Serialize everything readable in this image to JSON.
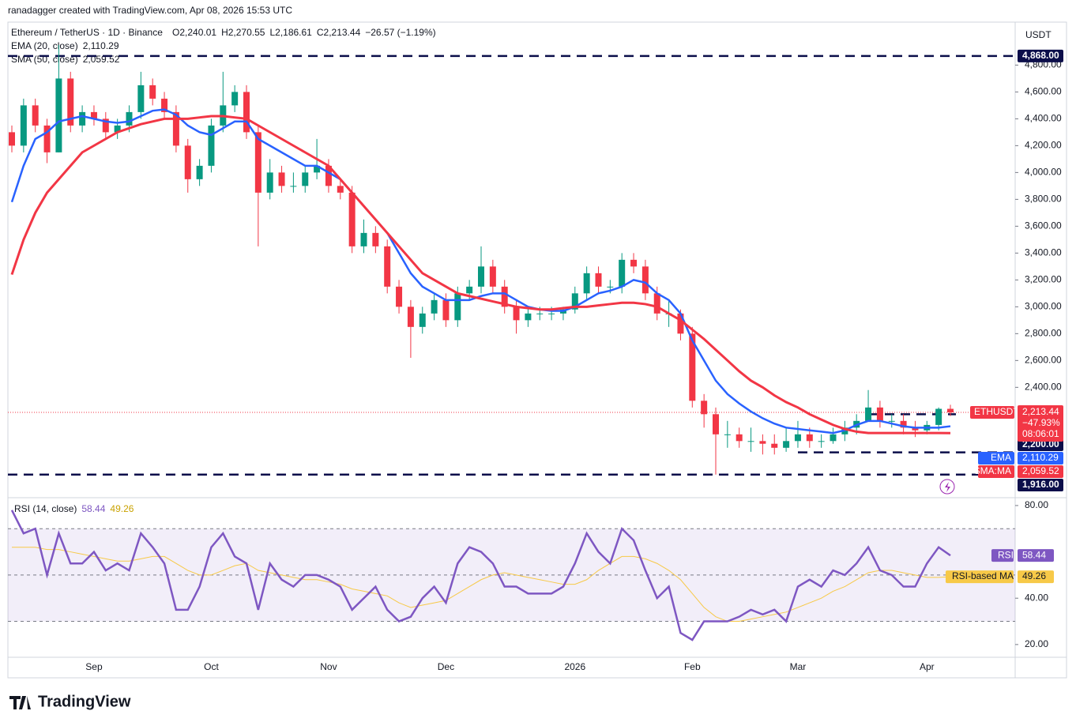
{
  "header": {
    "credit": "ranadagger created with TradingView.com, Apr 08, 2026 15:53 UTC",
    "logo": "TradingView"
  },
  "chart_data": [
    {
      "type": "candlestick",
      "title": "Ethereum / TetherUS · 1D · Binance",
      "unit": "USDT",
      "ohlc_legend": [
        "O",
        "2,240.01",
        "H",
        "2,270.55",
        "L",
        "2,186.61",
        "C",
        "2,213.44",
        "−26.57 (−1.19%)"
      ],
      "up_color": "#089981",
      "down_color": "#f23645",
      "categories": [
        null,
        null,
        null,
        null,
        null,
        null,
        null,
        "Sep",
        null,
        null,
        null,
        null,
        null,
        null,
        null,
        null,
        null,
        "Oct",
        null,
        null,
        null,
        null,
        null,
        null,
        null,
        null,
        null,
        "Nov",
        null,
        null,
        null,
        null,
        null,
        null,
        null,
        null,
        null,
        "Dec",
        null,
        null,
        null,
        null,
        null,
        null,
        null,
        null,
        null,
        null,
        "2026",
        null,
        null,
        null,
        null,
        null,
        null,
        null,
        null,
        null,
        "Feb",
        null,
        null,
        null,
        null,
        null,
        null,
        null,
        null,
        "Mar",
        null,
        null,
        null,
        null,
        null,
        null,
        null,
        null,
        null,
        null,
        "Apr",
        null,
        null
      ],
      "open": [
        4300,
        4200,
        4500,
        4350,
        4150,
        4700,
        4350,
        4450,
        4400,
        4300,
        4350,
        4450,
        4650,
        4550,
        4450,
        4200,
        3950,
        4050,
        4350,
        4500,
        4600,
        4300,
        3850,
        4000,
        3900,
        3900,
        4000,
        4050,
        3900,
        3850,
        3450,
        3550,
        3450,
        3150,
        3000,
        2850,
        2950,
        3050,
        2900,
        3100,
        3150,
        3300,
        3150,
        3000,
        2900,
        2950,
        2950,
        2950,
        2980,
        3100,
        3250,
        3150,
        3150,
        3350,
        3300,
        3100,
        2950,
        2950,
        2800,
        2300,
        2200,
        2050,
        2050,
        2000,
        2000,
        1980,
        1950,
        2000,
        2050,
        2000,
        2000,
        2050,
        2100,
        2150,
        2250,
        2150,
        2150,
        2100,
        2080,
        2120,
        2240.01
      ],
      "high": [
        4350,
        4550,
        4550,
        4400,
        4950,
        4750,
        4500,
        4500,
        4450,
        4400,
        4500,
        4750,
        4700,
        4600,
        4500,
        4250,
        4100,
        4400,
        4750,
        4650,
        4650,
        4350,
        4100,
        4050,
        4000,
        4050,
        4250,
        4100,
        3950,
        3900,
        3650,
        3600,
        3500,
        3200,
        3050,
        3000,
        3100,
        3100,
        3150,
        3200,
        3450,
        3350,
        3200,
        3050,
        3000,
        3000,
        3000,
        3000,
        3150,
        3300,
        3300,
        3200,
        3400,
        3400,
        3350,
        3150,
        3050,
        2980,
        2850,
        2350,
        2250,
        2150,
        2100,
        2100,
        2050,
        2050,
        2100,
        2150,
        2100,
        2050,
        2100,
        2150,
        2200,
        2380,
        2300,
        2200,
        2200,
        2150,
        2150,
        2250,
        2270.55
      ],
      "low": [
        4150,
        4150,
        4300,
        4070,
        4150,
        4300,
        4300,
        4350,
        4250,
        4250,
        4300,
        4400,
        4500,
        4400,
        4150,
        3850,
        3900,
        4000,
        4300,
        4450,
        4250,
        3450,
        3800,
        3850,
        3850,
        3850,
        3950,
        3850,
        3800,
        3400,
        3400,
        3400,
        3100,
        2950,
        2620,
        2800,
        2900,
        2850,
        2850,
        3050,
        3100,
        3100,
        2950,
        2800,
        2850,
        2900,
        2900,
        2900,
        2950,
        3050,
        3100,
        3100,
        3100,
        3250,
        3050,
        2900,
        2850,
        2750,
        2250,
        2100,
        1750,
        1950,
        1950,
        1920,
        1900,
        1900,
        1920,
        1950,
        1950,
        1950,
        1980,
        2000,
        2050,
        2150,
        2100,
        2100,
        2050,
        2030,
        2050,
        2080,
        2186.61
      ],
      "close": [
        4200,
        4500,
        4350,
        4150,
        4700,
        4350,
        4450,
        4400,
        4300,
        4350,
        4450,
        4650,
        4550,
        4450,
        4200,
        3950,
        4050,
        4350,
        4500,
        4600,
        4300,
        3850,
        4000,
        3900,
        3900,
        4000,
        4050,
        3900,
        3850,
        3450,
        3550,
        3450,
        3150,
        3000,
        2850,
        2950,
        3050,
        2900,
        3100,
        3150,
        3300,
        3150,
        3000,
        2900,
        2950,
        2950,
        2950,
        2980,
        3100,
        3250,
        3150,
        3150,
        3350,
        3300,
        3100,
        2950,
        2950,
        2800,
        2300,
        2200,
        2050,
        2050,
        2000,
        2000,
        1980,
        1950,
        2000,
        2050,
        2000,
        2000,
        2050,
        2100,
        2150,
        2250,
        2150,
        2150,
        2100,
        2080,
        2120,
        2240.01,
        2213.44
      ],
      "series": [
        {
          "name": "EMA (20, close)",
          "last_label": "2,110.29",
          "color": "#2962ff",
          "values": [
            3780,
            4050,
            4250,
            4300,
            4380,
            4400,
            4420,
            4400,
            4380,
            4370,
            4380,
            4420,
            4460,
            4470,
            4430,
            4350,
            4300,
            4280,
            4330,
            4380,
            4380,
            4250,
            4200,
            4150,
            4100,
            4050,
            4050,
            4000,
            3950,
            3850,
            3750,
            3650,
            3550,
            3400,
            3250,
            3150,
            3100,
            3050,
            3050,
            3050,
            3080,
            3100,
            3100,
            3050,
            3000,
            2980,
            2970,
            2970,
            3000,
            3050,
            3100,
            3120,
            3150,
            3200,
            3180,
            3100,
            3050,
            2950,
            2750,
            2600,
            2450,
            2350,
            2280,
            2220,
            2170,
            2130,
            2100,
            2090,
            2080,
            2070,
            2060,
            2080,
            2120,
            2150,
            2150,
            2130,
            2110,
            2100,
            2100,
            2100,
            2110.29
          ]
        },
        {
          "name": "SMA (50, close)",
          "last_label": "2,059.52",
          "color": "#f23645",
          "values": [
            3240,
            3500,
            3700,
            3850,
            3950,
            4050,
            4150,
            4200,
            4250,
            4300,
            4330,
            4360,
            4380,
            4400,
            4400,
            4400,
            4410,
            4420,
            4420,
            4410,
            4400,
            4350,
            4300,
            4250,
            4200,
            4150,
            4100,
            4050,
            3950,
            3850,
            3750,
            3650,
            3550,
            3450,
            3350,
            3250,
            3200,
            3150,
            3100,
            3080,
            3060,
            3040,
            3020,
            3000,
            2990,
            2980,
            2980,
            2990,
            3000,
            3000,
            3010,
            3020,
            3030,
            3030,
            3020,
            3000,
            2950,
            2900,
            2830,
            2760,
            2680,
            2600,
            2520,
            2450,
            2400,
            2340,
            2290,
            2250,
            2200,
            2160,
            2120,
            2090,
            2070,
            2060,
            2060,
            2060,
            2060,
            2060,
            2060,
            2060,
            2059.52
          ]
        }
      ],
      "ylim": [
        1590,
        5120
      ],
      "yticks": [
        {
          "value": 4800,
          "label": "4,800.00"
        },
        {
          "value": 4600,
          "label": "4,600.00"
        },
        {
          "value": 4400,
          "label": "4,400.00"
        },
        {
          "value": 4200,
          "label": "4,200.00"
        },
        {
          "value": 4000,
          "label": "4,000.00"
        },
        {
          "value": 3800,
          "label": "3,800.00"
        },
        {
          "value": 3600,
          "label": "3,600.00"
        },
        {
          "value": 3400,
          "label": "3,400.00"
        },
        {
          "value": 3200,
          "label": "3,200.00"
        },
        {
          "value": 3000,
          "label": "3,000.00"
        },
        {
          "value": 2800,
          "label": "2,800.00"
        },
        {
          "value": 2600,
          "label": "2,600.00"
        },
        {
          "value": 2400,
          "label": "2,400.00"
        }
      ],
      "levels": [
        {
          "value": 4868,
          "label": "4,868.00"
        },
        {
          "value": 2200,
          "label": "2,200.00"
        },
        {
          "value": 1916,
          "label": "1,916.00"
        },
        {
          "value": 1750
        }
      ],
      "price_tag": {
        "value": 2213.44,
        "name": "ETHUSDT",
        "label": "2,213.44",
        "change": "−47.93%",
        "countdown": "08:06:01"
      },
      "ma_tags": [
        {
          "name": "EMA",
          "label": "2,110.29",
          "color": "#2962ff"
        },
        {
          "name": "SMA:MA",
          "label": "2,059.52",
          "color": "#f23645"
        }
      ]
    },
    {
      "type": "line",
      "title": "RSI (14, close)",
      "band_color": "#7e57c2",
      "series": [
        {
          "name": "RSI",
          "last_label": "58.44",
          "color": "#7e57c2",
          "values": [
            78,
            68,
            70,
            50,
            68,
            55,
            55,
            60,
            52,
            55,
            52,
            68,
            62,
            55,
            35,
            35,
            45,
            62,
            68,
            58,
            55,
            35,
            55,
            48,
            45,
            50,
            50,
            48,
            45,
            35,
            40,
            45,
            35,
            30,
            32,
            40,
            45,
            38,
            55,
            62,
            60,
            55,
            45,
            45,
            42,
            42,
            42,
            45,
            55,
            68,
            60,
            55,
            70,
            65,
            52,
            40,
            45,
            25,
            22,
            30,
            30,
            30,
            32,
            35,
            33,
            35,
            30,
            45,
            48,
            45,
            52,
            50,
            55,
            62,
            52,
            50,
            45,
            45,
            55,
            62,
            58.44
          ]
        },
        {
          "name": "RSI-based MA",
          "last_label": "49.26",
          "color": "#f7c948",
          "values": [
            62,
            62,
            62,
            61,
            61,
            60,
            59,
            58,
            57,
            56,
            56,
            57,
            58,
            58,
            55,
            52,
            50,
            50,
            52,
            54,
            55,
            52,
            51,
            50,
            49,
            48,
            48,
            47,
            46,
            44,
            43,
            42,
            41,
            38,
            36,
            37,
            38,
            39,
            42,
            45,
            48,
            50,
            51,
            50,
            49,
            48,
            47,
            46,
            46,
            48,
            52,
            55,
            58,
            58,
            57,
            55,
            52,
            48,
            42,
            36,
            32,
            30,
            30,
            31,
            32,
            33,
            34,
            36,
            38,
            40,
            43,
            45,
            48,
            51,
            52,
            52,
            51,
            50,
            49,
            49,
            49.26
          ]
        }
      ],
      "ylim": [
        14.5,
        82.7
      ],
      "yticks": [
        {
          "value": 80,
          "label": "80.00"
        },
        {
          "value": 40,
          "label": "40.00"
        },
        {
          "value": 20,
          "label": "20.00"
        }
      ],
      "bands": [
        70,
        50,
        30
      ]
    }
  ]
}
